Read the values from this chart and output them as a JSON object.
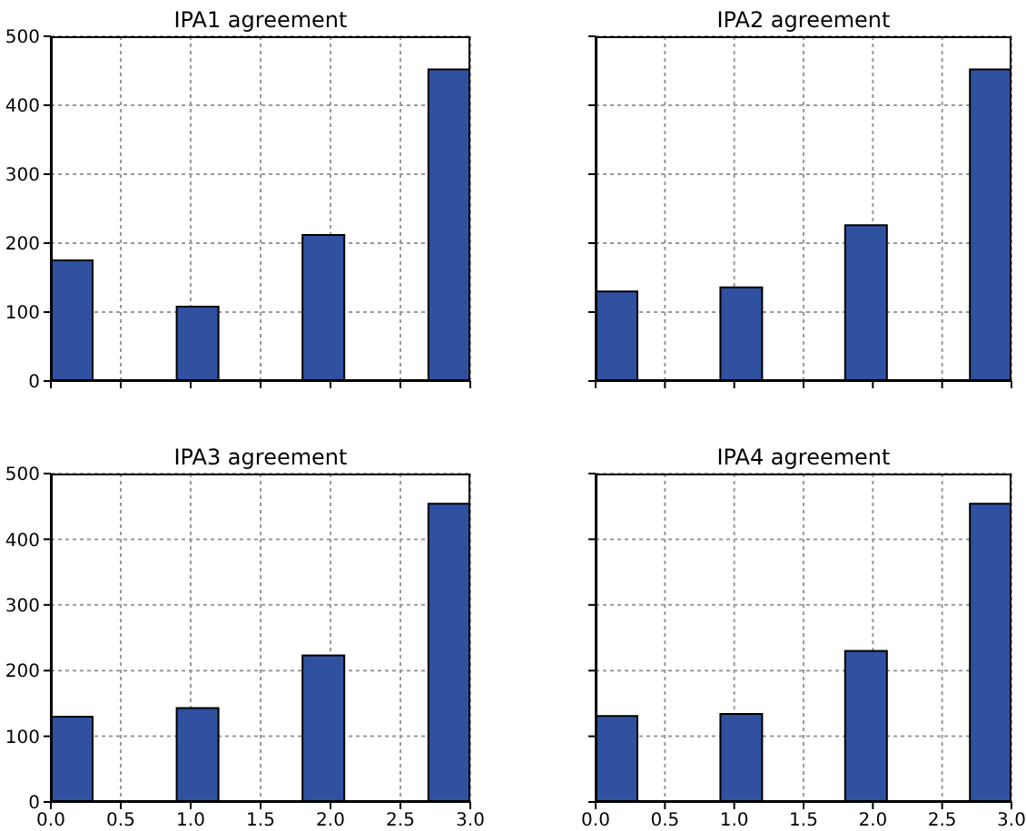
{
  "chart_data": [
    {
      "type": "histogram",
      "title": "IPA1 agreement",
      "bins": [
        0,
        0.3,
        0.6,
        0.9,
        1.2,
        1.5,
        1.8,
        2.1,
        2.4,
        2.7,
        3.0
      ],
      "values": [
        175,
        0,
        0,
        108,
        0,
        0,
        212,
        0,
        0,
        452
      ],
      "color": "#3050a0",
      "xlim": [
        0,
        3
      ],
      "ylim": [
        0,
        500
      ],
      "xticks": [
        0,
        0.5,
        1,
        1.5,
        2,
        2.5,
        3
      ],
      "yticks": [
        0,
        100,
        200,
        300,
        400,
        500
      ],
      "grid": true,
      "tick_labels": "y"
    },
    {
      "type": "histogram",
      "title": "IPA2 agreement",
      "bins": [
        0,
        0.3,
        0.6,
        0.9,
        1.2,
        1.5,
        1.8,
        2.1,
        2.4,
        2.7,
        3.0
      ],
      "values": [
        130,
        0,
        0,
        136,
        0,
        0,
        226,
        0,
        0,
        452
      ],
      "color": "#3050a0",
      "xlim": [
        0,
        3
      ],
      "ylim": [
        0,
        500
      ],
      "xticks": [
        0,
        0.5,
        1,
        1.5,
        2,
        2.5,
        3
      ],
      "yticks": [
        0,
        100,
        200,
        300,
        400,
        500
      ],
      "grid": true,
      "tick_labels": false
    },
    {
      "type": "histogram",
      "title": "IPA3 agreement",
      "bins": [
        0,
        0.3,
        0.6,
        0.9,
        1.2,
        1.5,
        1.8,
        2.1,
        2.4,
        2.7,
        3.0
      ],
      "values": [
        130,
        0,
        0,
        143,
        0,
        0,
        223,
        0,
        0,
        454
      ],
      "color": "#3050a0",
      "xlim": [
        0,
        3
      ],
      "ylim": [
        0,
        500
      ],
      "xticks": [
        {
          "value": 0,
          "label": "0.0"
        },
        {
          "value": 0.5,
          "label": "0.5"
        },
        {
          "value": 1,
          "label": "1.0"
        },
        {
          "value": 1.5,
          "label": "1.5"
        },
        {
          "value": 2,
          "label": "2.0"
        },
        {
          "value": 2.5,
          "label": "2.5"
        },
        {
          "value": 3,
          "label": "3.0"
        }
      ],
      "yticks": [
        0,
        100,
        200,
        300,
        400,
        500
      ],
      "grid": true
    },
    {
      "type": "histogram",
      "title": "IPA4 agreement",
      "bins": [
        0,
        0.3,
        0.6,
        0.9,
        1.2,
        1.5,
        1.8,
        2.1,
        2.4,
        2.7,
        3.0
      ],
      "values": [
        131,
        0,
        0,
        134,
        0,
        0,
        230,
        0,
        0,
        454
      ],
      "color": "#3050a0",
      "xlim": [
        0,
        3
      ],
      "ylim": [
        0,
        500
      ],
      "xticks": [
        {
          "value": 0,
          "label": "0.0"
        },
        {
          "value": 0.5,
          "label": "0.5"
        },
        {
          "value": 1,
          "label": "1.0"
        },
        {
          "value": 1.5,
          "label": "1.5"
        },
        {
          "value": 2,
          "label": "2.0"
        },
        {
          "value": 2.5,
          "label": "2.5"
        },
        {
          "value": 3,
          "label": "3.0"
        }
      ],
      "yticks": [
        0,
        100,
        200,
        300,
        400,
        500
      ],
      "grid": true,
      "tick_labels": "x"
    }
  ]
}
